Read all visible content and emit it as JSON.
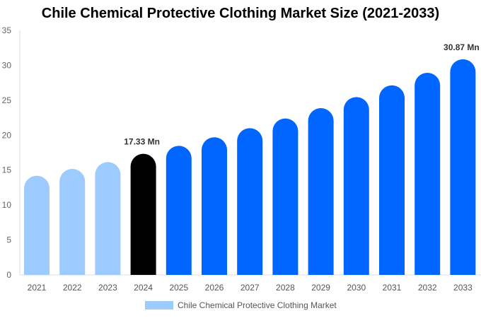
{
  "chart_data": {
    "type": "bar",
    "title": "Chile Chemical Protective Clothing Market Size (2021-2033)",
    "categories": [
      "2021",
      "2022",
      "2023",
      "2024",
      "2025",
      "2026",
      "2027",
      "2028",
      "2029",
      "2030",
      "2031",
      "2032",
      "2033"
    ],
    "series": [
      {
        "name": "Chile Chemical Protective Clothing Market",
        "values": [
          14.2,
          15.17,
          16.15,
          17.33,
          18.48,
          19.7,
          21.0,
          22.39,
          23.87,
          25.45,
          27.13,
          28.93,
          30.87
        ]
      }
    ],
    "data_labels": [
      {
        "category": "2024",
        "text": "17.33 Mn"
      },
      {
        "category": "2033",
        "text": "30.87 Mn"
      }
    ],
    "ylim": [
      0,
      35
    ],
    "yticks": [
      0,
      5,
      10,
      15,
      20,
      25,
      30,
      35
    ],
    "xlabel": "",
    "ylabel": "",
    "grid": false,
    "legend_position": "bottom",
    "colors": {
      "historical": "#9ecbff",
      "base_year": "#000000",
      "forecast": "#0066ff",
      "legend": "#9ecbff"
    }
  }
}
